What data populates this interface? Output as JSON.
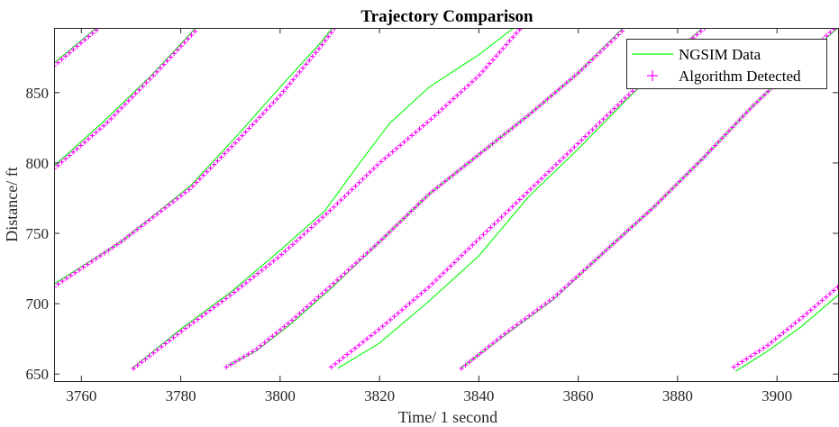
{
  "chart_data": {
    "type": "line",
    "title": "Trajectory Comparison",
    "xlabel": "Time/ 1 second",
    "ylabel": "Distance/ ft",
    "xlim": [
      3754.5,
      3912.3
    ],
    "ylim": [
      645,
      896
    ],
    "xticks": [
      3760,
      3780,
      3800,
      3820,
      3840,
      3860,
      3880,
      3900
    ],
    "yticks": [
      650,
      700,
      750,
      800,
      850
    ],
    "grid": false,
    "legend_position": "top-right",
    "series": [
      {
        "name": "NGSIM Data",
        "style": "line",
        "color": "#00ff00",
        "trajectories": [
          [
            [
              3754.5,
              871
            ],
            [
              3763,
              896
            ]
          ],
          [
            [
              3754.5,
              798
            ],
            [
              3764,
              828
            ],
            [
              3774,
              862
            ],
            [
              3783,
              896
            ]
          ],
          [
            [
              3754.5,
              714
            ],
            [
              3768,
              744
            ],
            [
              3782,
              784
            ],
            [
              3792,
              822
            ],
            [
              3800,
              854
            ],
            [
              3808,
              885
            ],
            [
              3810.5,
              896
            ]
          ],
          [
            [
              3770.2,
              654
            ],
            [
              3780,
              682
            ],
            [
              3790,
              708
            ],
            [
              3800,
              738
            ],
            [
              3809,
              766
            ],
            [
              3816,
              800
            ],
            [
              3822,
              828
            ],
            [
              3830,
              854
            ],
            [
              3840,
              877
            ],
            [
              3847,
              896
            ]
          ],
          [
            [
              3789.6,
              656
            ],
            [
              3795,
              666
            ],
            [
              3802,
              685
            ],
            [
              3810,
              710
            ],
            [
              3820,
              744
            ],
            [
              3830,
              778
            ],
            [
              3840,
              806
            ],
            [
              3850,
              834
            ],
            [
              3860,
              864
            ],
            [
              3869,
              896
            ]
          ],
          [
            [
              3811.6,
              654
            ],
            [
              3820,
              672
            ],
            [
              3830,
              702
            ],
            [
              3840,
              734
            ],
            [
              3850,
              776
            ],
            [
              3860,
              810
            ],
            [
              3870,
              846
            ],
            [
              3880,
              880
            ],
            [
              3885,
              896
            ]
          ],
          [
            [
              3836.3,
              654
            ],
            [
              3845,
              677
            ],
            [
              3855,
              703
            ],
            [
              3865,
              736
            ],
            [
              3875,
              768
            ],
            [
              3885,
              803
            ],
            [
              3895,
              840
            ],
            [
              3905,
              874
            ],
            [
              3912.3,
              896
            ]
          ],
          [
            [
              3891.7,
              652
            ],
            [
              3898,
              666
            ],
            [
              3905,
              684
            ],
            [
              3912.3,
              706
            ]
          ]
        ]
      },
      {
        "name": "Algorithm Detected",
        "style": "markers",
        "marker": "+",
        "color": "#ff00ff",
        "trajectories": [
          [
            [
              3754.5,
              869
            ],
            [
              3763.5,
              896
            ]
          ],
          [
            [
              3754.5,
              796
            ],
            [
              3765,
              828
            ],
            [
              3775,
              864
            ],
            [
              3783.5,
              896
            ]
          ],
          [
            [
              3754.5,
              712
            ],
            [
              3768,
              744
            ],
            [
              3782,
              782
            ],
            [
              3792,
              818
            ],
            [
              3800,
              848
            ],
            [
              3808,
              882
            ],
            [
              3811,
              896
            ]
          ],
          [
            [
              3770.5,
              654
            ],
            [
              3780,
              680
            ],
            [
              3790,
              706
            ],
            [
              3800,
              734
            ],
            [
              3810,
              766
            ],
            [
              3820,
              800
            ],
            [
              3830,
              830
            ],
            [
              3840,
              862
            ],
            [
              3848.5,
              896
            ]
          ],
          [
            [
              3789.2,
              655
            ],
            [
              3795,
              667
            ],
            [
              3802,
              687
            ],
            [
              3810,
              712
            ],
            [
              3820,
              744
            ],
            [
              3830,
              778
            ],
            [
              3840,
              806
            ],
            [
              3850,
              834
            ],
            [
              3860,
              864
            ],
            [
              3869.5,
              896
            ]
          ],
          [
            [
              3810.3,
              655
            ],
            [
              3820,
              682
            ],
            [
              3830,
              712
            ],
            [
              3840,
              746
            ],
            [
              3850,
              780
            ],
            [
              3860,
              814
            ],
            [
              3870,
              848
            ],
            [
              3880,
              880
            ],
            [
              3885.5,
              896
            ]
          ],
          [
            [
              3836.5,
              654
            ],
            [
              3845,
              678
            ],
            [
              3855,
              704
            ],
            [
              3865,
              736
            ],
            [
              3875,
              768
            ],
            [
              3885,
              803
            ],
            [
              3895,
              840
            ],
            [
              3905,
              874
            ],
            [
              3912.3,
              898
            ]
          ],
          [
            [
              3891.3,
              655
            ],
            [
              3898,
              670
            ],
            [
              3905,
              690
            ],
            [
              3912.3,
              712
            ]
          ]
        ]
      }
    ]
  }
}
